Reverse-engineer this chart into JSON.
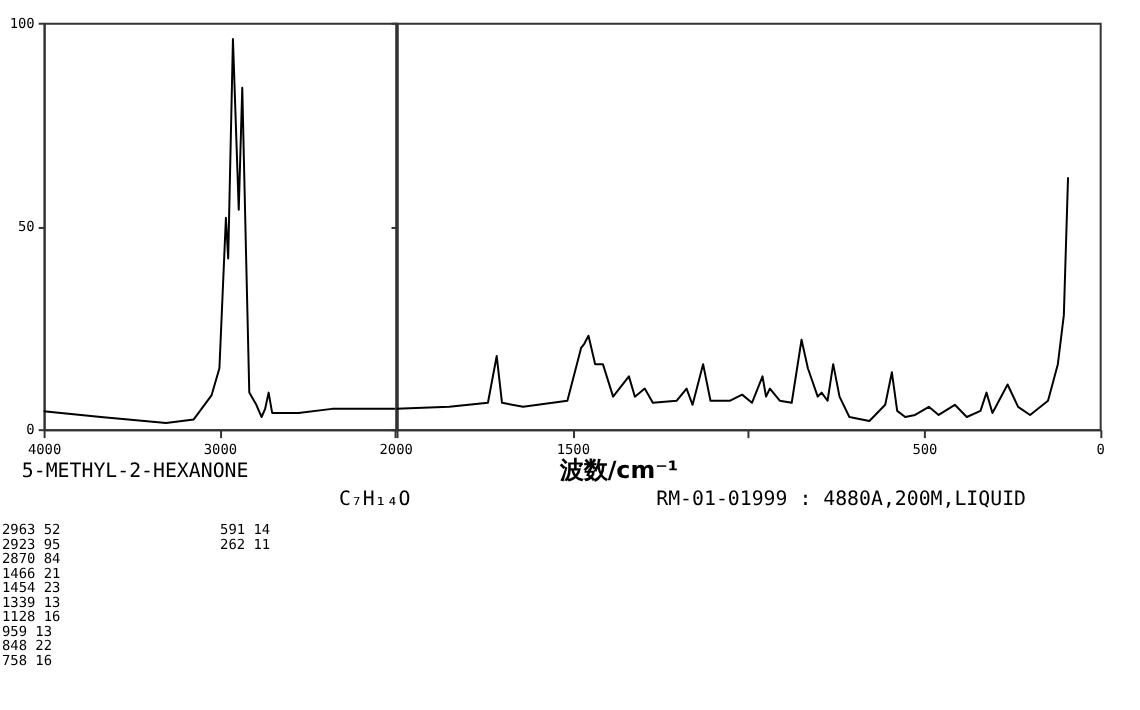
{
  "chart_data": [
    {
      "type": "line",
      "x": [
        4000,
        3674,
        3303,
        3146,
        3045,
        3000,
        2963,
        2950,
        2923,
        2890,
        2870,
        2850,
        2830,
        2790,
        2760,
        2740,
        2720,
        2700,
        2550,
        2360,
        2000
      ],
      "series": [
        {
          "color": "#000000",
          "values": [
            4.4,
            3,
            1.5,
            2.4,
            8.3,
            15,
            52,
            42,
            96,
            54,
            84,
            46,
            9,
            6,
            3,
            5,
            9,
            4,
            4,
            5,
            5
          ]
        }
      ],
      "xlim": [
        4000,
        2000
      ],
      "xticks": [
        4000,
        3000,
        2000
      ],
      "ylim": [
        0,
        100
      ],
      "yticks": [
        0,
        50,
        100
      ],
      "grid": false,
      "line_style": "solid",
      "marker": "none",
      "annotations": [
        "5-METHYL-2-HEXANONE",
        "C₇H₁₄O",
        "RM-01-01999 : 4880A,200M,LIQUID",
        "2963   52",
        "2923   95",
        "2870   84",
        "1466   21",
        "1454   23",
        "1339   13",
        "1128   16",
        " 959   13",
        " 848   22",
        " 758   16",
        " 591   14",
        " 262   11"
      ]
    },
    {
      "type": "line",
      "xlabel": "波数/cm⁻¹",
      "x": [
        2000,
        1850,
        1740,
        1715,
        1700,
        1640,
        1514,
        1475,
        1466,
        1454,
        1435,
        1413,
        1384,
        1339,
        1322,
        1294,
        1271,
        1203,
        1175,
        1158,
        1128,
        1107,
        1051,
        1017,
        989,
        959,
        949,
        938,
        910,
        876,
        848,
        830,
        802,
        791,
        774,
        758,
        740,
        712,
        655,
        610,
        591,
        576,
        553,
        525,
        486,
        458,
        412,
        378,
        339,
        322,
        305,
        262,
        232,
        198,
        147,
        119,
        102,
        90
      ],
      "series": [
        {
          "color": "#000000",
          "values": [
            5,
            5.5,
            6.5,
            18,
            6.5,
            5.5,
            7,
            20,
            21,
            23,
            16,
            16,
            8,
            13,
            8,
            10,
            6.5,
            7,
            10,
            6,
            16,
            7,
            7,
            8.5,
            6.5,
            13,
            8,
            10,
            7,
            6.5,
            22,
            15,
            8,
            9,
            7,
            16,
            8,
            3,
            2,
            6,
            14,
            4.5,
            3,
            3.5,
            5.5,
            3.5,
            6,
            3,
            4.5,
            9,
            4,
            11,
            5.5,
            3.5,
            7,
            16,
            28,
            62
          ]
        }
      ],
      "xlim": [
        2000,
        0
      ],
      "xticks": [
        {
          "value": 2000,
          "label": null
        },
        1500,
        {
          "value": 1000,
          "label": null
        },
        500,
        0
      ],
      "ylim": [
        0,
        100
      ],
      "yticks": [
        0,
        50,
        100
      ],
      "tick_labels": "x",
      "grid": false,
      "line_style": "solid",
      "marker": "none"
    }
  ]
}
